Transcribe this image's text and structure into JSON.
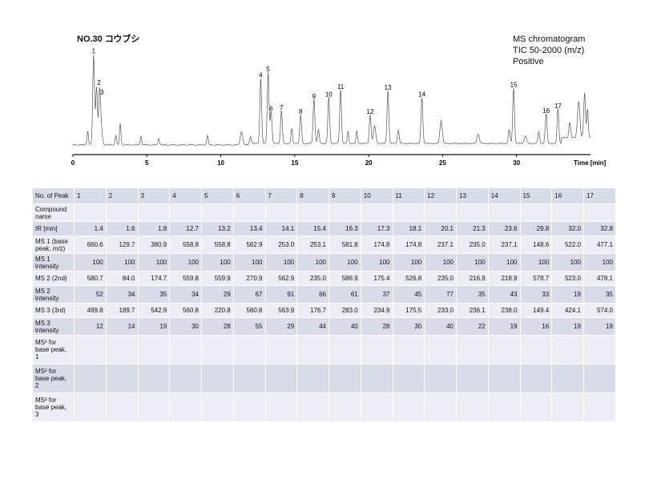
{
  "header": {
    "title": "NO.30 コウブシ",
    "ms_lines": [
      "MS chromatogram",
      "TIC 50-2000 (m/z)",
      "Positive"
    ]
  },
  "chart_data": {
    "type": "line",
    "title": "NO.30 コウブシ",
    "xlabel": "Time [min]",
    "ylabel": "",
    "xlim": [
      0,
      36
    ],
    "x_ticks": [
      0,
      5,
      10,
      15,
      20,
      25,
      30
    ],
    "x_tick_labels": [
      "0",
      "5",
      "10",
      "15",
      "20",
      "25",
      "30"
    ],
    "peaks": [
      {
        "label": "1",
        "x": 1.4,
        "y": 0.93
      },
      {
        "label": "2",
        "x": 1.6,
        "y": 0.6
      },
      {
        "label": "3",
        "x": 1.8,
        "y": 0.5
      },
      {
        "label": "4",
        "x": 12.7,
        "y": 0.68
      },
      {
        "label": "5",
        "x": 13.2,
        "y": 0.74
      },
      {
        "label": "6",
        "x": 13.4,
        "y": 0.33
      },
      {
        "label": "7",
        "x": 14.1,
        "y": 0.34
      },
      {
        "label": "8",
        "x": 15.4,
        "y": 0.3
      },
      {
        "label": "9",
        "x": 16.3,
        "y": 0.46
      },
      {
        "label": "10",
        "x": 17.3,
        "y": 0.48
      },
      {
        "label": "11",
        "x": 18.1,
        "y": 0.56
      },
      {
        "label": "12",
        "x": 20.1,
        "y": 0.3
      },
      {
        "label": "13",
        "x": 21.3,
        "y": 0.55
      },
      {
        "label": "14",
        "x": 23.6,
        "y": 0.48
      },
      {
        "label": "15",
        "x": 29.8,
        "y": 0.58
      },
      {
        "label": "16",
        "x": 32.0,
        "y": 0.31
      },
      {
        "label": "17",
        "x": 32.8,
        "y": 0.36
      }
    ]
  },
  "table": {
    "columns": [
      "1",
      "2",
      "3",
      "4",
      "5",
      "6",
      "7",
      "8",
      "9",
      "10",
      "11",
      "12",
      "13",
      "14",
      "15",
      "16",
      "17"
    ],
    "rows": [
      {
        "label": "No. of Peak",
        "values": [
          "1",
          "2",
          "3",
          "4",
          "5",
          "6",
          "7",
          "8",
          "9",
          "10",
          "11",
          "12",
          "13",
          "14",
          "15",
          "16",
          "17"
        ]
      },
      {
        "label": "Compound name",
        "values": [
          "",
          "",
          "",
          "",
          "",
          "",
          "",
          "",
          "",
          "",
          "",
          "",
          "",
          "",
          "",
          "",
          ""
        ]
      },
      {
        "label": "tR [min]",
        "values": [
          "1.4",
          "1.6",
          "1.8",
          "12.7",
          "13.2",
          "13.4",
          "14.1",
          "15.4",
          "16.3",
          "17.3",
          "18.1",
          "20.1",
          "21.3",
          "23.6",
          "29.8",
          "32.0",
          "32.8"
        ]
      },
      {
        "label": "MS 1 (base peak, m/z)",
        "values": [
          "660.6",
          "129.7",
          "380.9",
          "558.8",
          "558.8",
          "562.9",
          "253.0",
          "253.1",
          "581.8",
          "174.8",
          "174.8",
          "237.1",
          "235.0",
          "237.1",
          "148.6",
          "522.0",
          "477.1"
        ]
      },
      {
        "label": "MS 1 intensity",
        "values": [
          "100",
          "100",
          "100",
          "100",
          "100",
          "100",
          "100",
          "100",
          "100",
          "100",
          "100",
          "100",
          "100",
          "100",
          "100",
          "100",
          "100"
        ]
      },
      {
        "label": "MS 2 (2nd)",
        "values": [
          "580.7",
          "84.0",
          "174.7",
          "559.8",
          "559.9",
          "270.9",
          "562.9",
          "235.0",
          "586.9",
          "175.4",
          "526.8",
          "235.0",
          "216.9",
          "218.9",
          "578.7",
          "523.0",
          "478.1"
        ]
      },
      {
        "label": "MS 2 intensity",
        "values": [
          "52",
          "34",
          "35",
          "34",
          "29",
          "67",
          "91",
          "66",
          "61",
          "37",
          "45",
          "77",
          "35",
          "43",
          "33",
          "19",
          "35"
        ]
      },
      {
        "label": "MS 3 (3rd)",
        "values": [
          "499.8",
          "189.7",
          "542.9",
          "560.8",
          "220.8",
          "560.8",
          "563.9",
          "176.7",
          "283.0",
          "234.9",
          "175.5",
          "233.0",
          "236.1",
          "238.0",
          "149.4",
          "424.1",
          "574.0"
        ]
      },
      {
        "label": "MS 3 intensity",
        "values": [
          "12",
          "14",
          "19",
          "30",
          "28",
          "55",
          "29",
          "44",
          "40",
          "28",
          "30",
          "40",
          "22",
          "19",
          "16",
          "19",
          "19"
        ]
      },
      {
        "label": "MS² for base peak, 1",
        "values": [
          "",
          "",
          "",
          "",
          "",
          "",
          "",
          "",
          "",
          "",
          "",
          "",
          "",
          "",
          "",
          "",
          ""
        ]
      },
      {
        "label": "MS² for base peak, 2",
        "values": [
          "",
          "",
          "",
          "",
          "",
          "",
          "",
          "",
          "",
          "",
          "",
          "",
          "",
          "",
          "",
          "",
          ""
        ]
      },
      {
        "label": "MS² for base peak, 3",
        "values": [
          "",
          "",
          "",
          "",
          "",
          "",
          "",
          "",
          "",
          "",
          "",
          "",
          "",
          "",
          "",
          "",
          ""
        ]
      }
    ]
  }
}
